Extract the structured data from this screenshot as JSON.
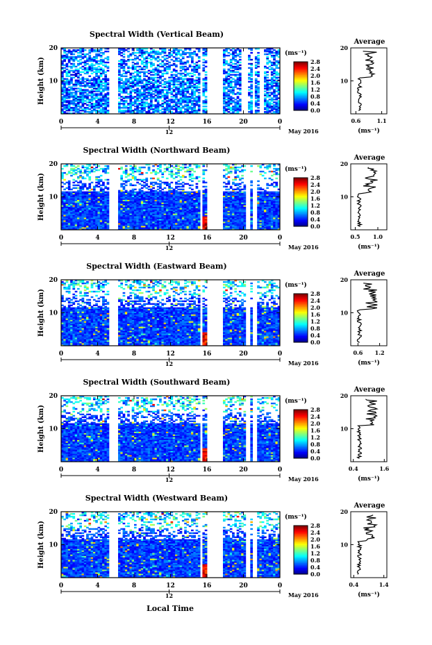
{
  "figure": {
    "xlabel": "Local Time",
    "date_label": "May 2016",
    "unit_label": "(ms⁻¹)",
    "average_title": "Average"
  },
  "chart_data": [
    {
      "type": "heatmap",
      "title": "Spectral Width (Vertical Beam)",
      "ylabel": "Height (km)",
      "xlabel": "Local Time",
      "x_ticks": [
        "0",
        "4",
        "8",
        "12",
        "16",
        "20",
        "0"
      ],
      "x_sub_ticks": [
        "12"
      ],
      "y_ticks": [
        "10",
        "20"
      ],
      "xlim": [
        0,
        24
      ],
      "ylim": [
        0,
        20
      ],
      "colorbar": {
        "label": "(ms⁻¹)",
        "ticks": [
          "0.0",
          "0.4",
          "0.8",
          "1.2",
          "1.6",
          "2.0",
          "2.4",
          "2.8"
        ],
        "range": [
          0,
          2.8
        ]
      },
      "gaps": [
        [
          5.2,
          6.2
        ],
        [
          15.3,
          15.6
        ],
        [
          16.1,
          17.7
        ],
        [
          19.8,
          20.4
        ],
        [
          20.9,
          21.3
        ],
        [
          21.8,
          22.2
        ]
      ],
      "average_profile": {
        "title": "Average",
        "xlabel": "(ms⁻¹)",
        "x_ticks": [
          "0.6",
          "1.1"
        ],
        "y_ticks": [
          "10",
          "20"
        ],
        "xlim": [
          0.5,
          1.2
        ],
        "ylim": [
          0,
          20
        ]
      }
    },
    {
      "type": "heatmap",
      "title": "Spectral Width (Northward Beam)",
      "ylabel": "Height (km)",
      "xlabel": "Local Time",
      "x_ticks": [
        "0",
        "4",
        "8",
        "12",
        "16",
        "20",
        "0"
      ],
      "x_sub_ticks": [
        "12"
      ],
      "y_ticks": [
        "10",
        "20"
      ],
      "xlim": [
        0,
        24
      ],
      "ylim": [
        0,
        20
      ],
      "colorbar": {
        "label": "(ms⁻¹)",
        "ticks": [
          "0.0",
          "0.4",
          "0.8",
          "1.2",
          "1.6",
          "2.0",
          "2.4",
          "2.8"
        ],
        "range": [
          0,
          2.8
        ]
      },
      "gaps": [
        [
          5.2,
          6.2
        ],
        [
          15.3,
          15.6
        ],
        [
          16.1,
          17.7
        ],
        [
          20.3,
          20.7
        ],
        [
          21.1,
          21.5
        ]
      ],
      "average_profile": {
        "title": "Average",
        "xlabel": "(ms⁻¹)",
        "x_ticks": [
          "0.5",
          "1.0"
        ],
        "y_ticks": [
          "10",
          "20"
        ],
        "xlim": [
          0.4,
          1.2
        ],
        "ylim": [
          0,
          20
        ]
      }
    },
    {
      "type": "heatmap",
      "title": "Spectral Width (Eastward Beam)",
      "ylabel": "Height (km)",
      "xlabel": "Local Time",
      "x_ticks": [
        "0",
        "4",
        "8",
        "12",
        "16",
        "20",
        "0"
      ],
      "x_sub_ticks": [
        "12"
      ],
      "y_ticks": [
        "10",
        "20"
      ],
      "xlim": [
        0,
        24
      ],
      "ylim": [
        0,
        20
      ],
      "colorbar": {
        "label": "(ms⁻¹)",
        "ticks": [
          "0.0",
          "0.4",
          "0.8",
          "1.2",
          "1.6",
          "2.0",
          "2.4",
          "2.8"
        ],
        "range": [
          0,
          2.8
        ]
      },
      "gaps": [
        [
          5.2,
          6.2
        ],
        [
          15.3,
          15.6
        ],
        [
          16.1,
          17.7
        ],
        [
          20.3,
          20.7
        ],
        [
          21.1,
          21.5
        ]
      ],
      "average_profile": {
        "title": "Average",
        "xlabel": "(ms⁻¹)",
        "x_ticks": [
          "0.6",
          "1.2"
        ],
        "y_ticks": [
          "10",
          "20"
        ],
        "xlim": [
          0.4,
          1.4
        ],
        "ylim": [
          0,
          20
        ]
      }
    },
    {
      "type": "heatmap",
      "title": "Spectral Width (Southward Beam)",
      "ylabel": "Height (km)",
      "xlabel": "Local Time",
      "x_ticks": [
        "0",
        "4",
        "8",
        "12",
        "16",
        "20",
        "0"
      ],
      "x_sub_ticks": [
        "12"
      ],
      "y_ticks": [
        "10",
        "20"
      ],
      "xlim": [
        0,
        24
      ],
      "ylim": [
        0,
        20
      ],
      "colorbar": {
        "label": "(ms⁻¹)",
        "ticks": [
          "0.0",
          "0.4",
          "0.8",
          "1.2",
          "1.6",
          "2.0",
          "2.4",
          "2.8"
        ],
        "range": [
          0,
          2.8
        ]
      },
      "gaps": [
        [
          5.2,
          6.2
        ],
        [
          15.3,
          15.6
        ],
        [
          16.1,
          17.7
        ],
        [
          20.3,
          20.7
        ],
        [
          21.1,
          21.5
        ]
      ],
      "average_profile": {
        "title": "Average",
        "xlabel": "(ms⁻¹)",
        "x_ticks": [
          "0.4",
          "1.6"
        ],
        "y_ticks": [
          "10",
          "20"
        ],
        "xlim": [
          0.3,
          1.7
        ],
        "ylim": [
          0,
          20
        ]
      }
    },
    {
      "type": "heatmap",
      "title": "Spectral Width (Westward Beam)",
      "ylabel": "Height (km)",
      "xlabel": "Local Time",
      "x_ticks": [
        "0",
        "4",
        "8",
        "12",
        "16",
        "20",
        "0"
      ],
      "x_sub_ticks": [
        "12"
      ],
      "y_ticks": [
        "10",
        "20"
      ],
      "xlim": [
        0,
        24
      ],
      "ylim": [
        0,
        20
      ],
      "colorbar": {
        "label": "(ms⁻¹)",
        "ticks": [
          "0.0",
          "0.4",
          "0.8",
          "1.2",
          "1.6",
          "2.0",
          "2.4",
          "2.8"
        ],
        "range": [
          0,
          2.8
        ]
      },
      "gaps": [
        [
          5.2,
          6.2
        ],
        [
          15.3,
          15.6
        ],
        [
          16.1,
          17.7
        ],
        [
          20.3,
          20.7
        ],
        [
          21.1,
          21.5
        ]
      ],
      "average_profile": {
        "title": "Average",
        "xlabel": "(ms⁻¹)",
        "x_ticks": [
          "0.4",
          "1.4"
        ],
        "y_ticks": [
          "10",
          "20"
        ],
        "xlim": [
          0.3,
          1.5
        ],
        "ylim": [
          0,
          20
        ]
      }
    }
  ]
}
